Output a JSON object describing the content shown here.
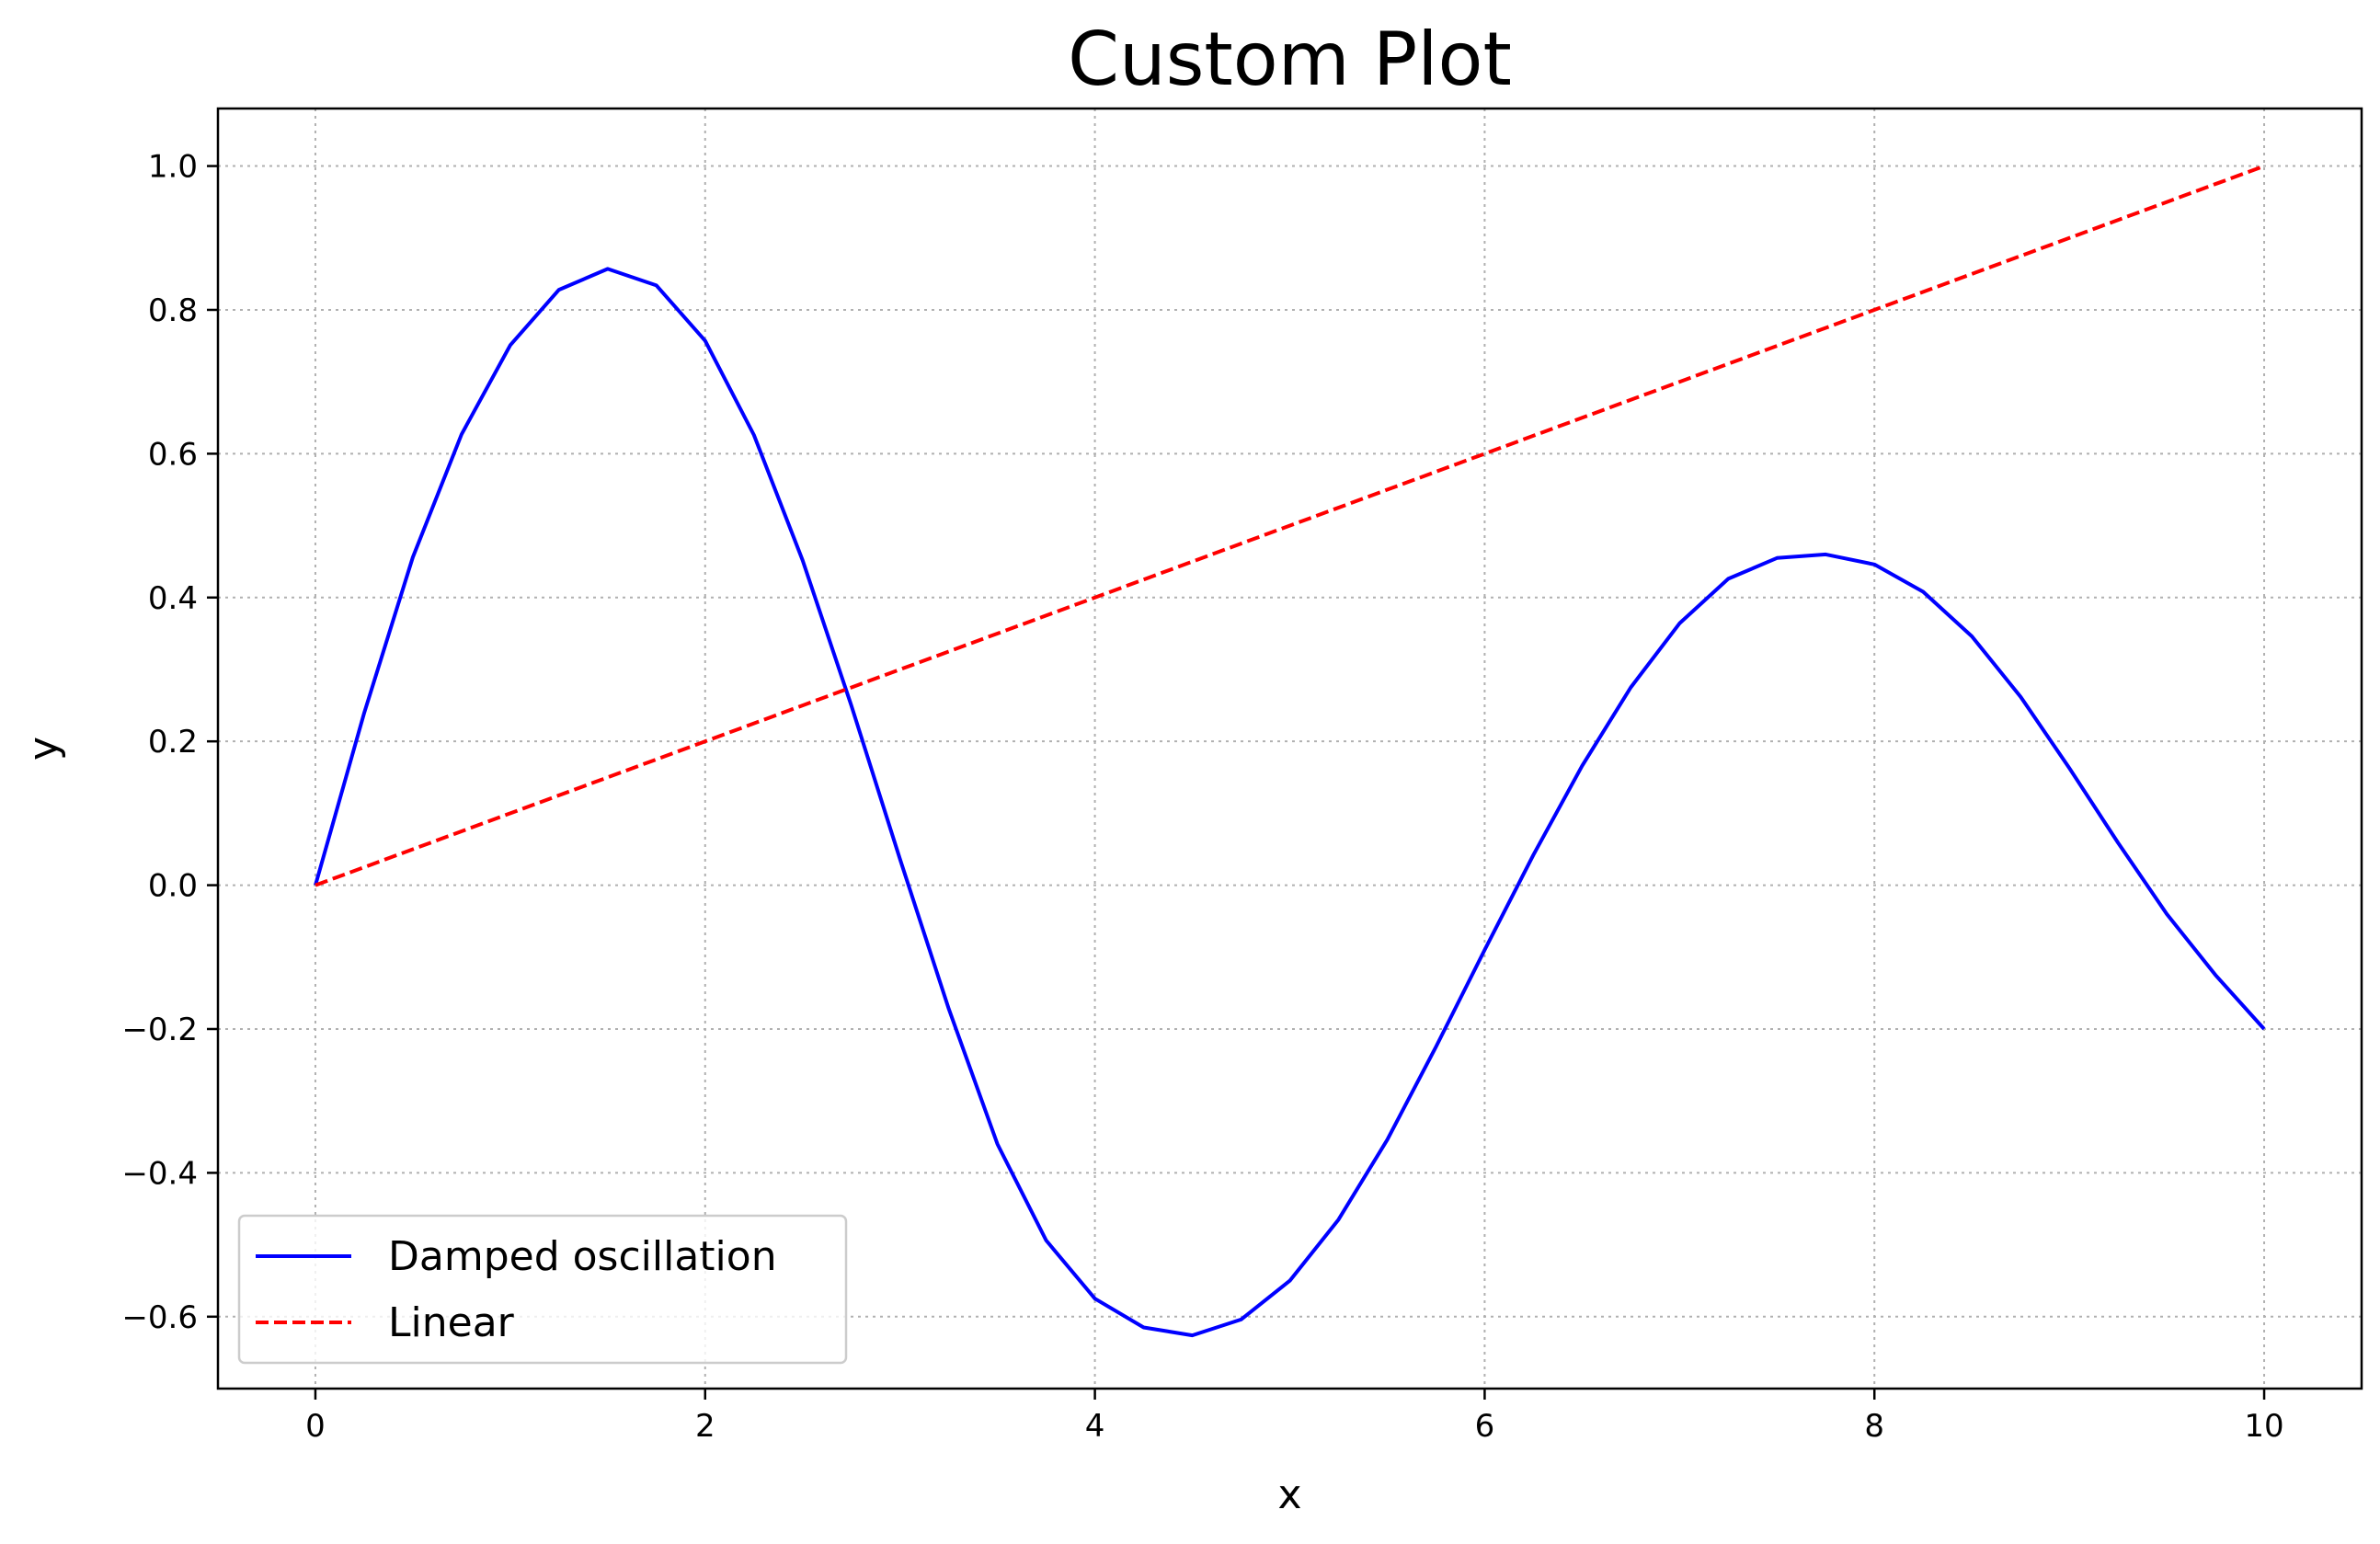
{
  "chart_data": {
    "type": "line",
    "title": "Custom Plot",
    "xlabel": "x",
    "ylabel": "y",
    "xlim": [
      -0.5,
      10.5
    ],
    "ylim": [
      -0.7,
      1.08
    ],
    "x_ticks": [
      0,
      2,
      4,
      6,
      8,
      10
    ],
    "x_tick_labels": [
      "0",
      "2",
      "4",
      "6",
      "8",
      "10"
    ],
    "y_ticks": [
      -0.6,
      -0.4,
      -0.2,
      0.0,
      0.2,
      0.4,
      0.6,
      0.8,
      1.0
    ],
    "y_tick_labels": [
      "−0.6",
      "−0.4",
      "−0.2",
      "0.0",
      "0.2",
      "0.4",
      "0.6",
      "0.8",
      "1.0"
    ],
    "grid": true,
    "legend_position": "lower-left",
    "series": [
      {
        "name": "Damped oscillation",
        "color": "#0000ff",
        "style": "solid",
        "x": [
          0,
          0.25,
          0.5,
          0.75,
          1,
          1.25,
          1.5,
          1.75,
          2,
          2.25,
          2.5,
          2.75,
          3,
          3.25,
          3.5,
          3.75,
          4,
          4.25,
          4.5,
          4.75,
          5,
          5.25,
          5.5,
          5.75,
          6,
          6.25,
          6.5,
          6.75,
          7,
          7.25,
          7.5,
          7.75,
          8,
          8.25,
          8.5,
          8.75,
          9,
          9.25,
          9.5,
          9.75,
          10
        ],
        "y": [
          0,
          0.239,
          0.456,
          0.627,
          0.751,
          0.828,
          0.857,
          0.834,
          0.757,
          0.626,
          0.452,
          0.25,
          0.036,
          -0.172,
          -0.36,
          -0.494,
          -0.575,
          -0.615,
          -0.626,
          -0.604,
          -0.55,
          -0.465,
          -0.354,
          -0.225,
          -0.09,
          0.042,
          0.166,
          0.275,
          0.364,
          0.426,
          0.455,
          0.46,
          0.446,
          0.408,
          0.346,
          0.262,
          0.163,
          0.059,
          -0.04,
          -0.125,
          -0.2
        ]
      },
      {
        "name": "Linear",
        "color": "#ff0000",
        "style": "dashed",
        "x": [
          0,
          10
        ],
        "y": [
          0,
          1.0
        ]
      }
    ]
  }
}
